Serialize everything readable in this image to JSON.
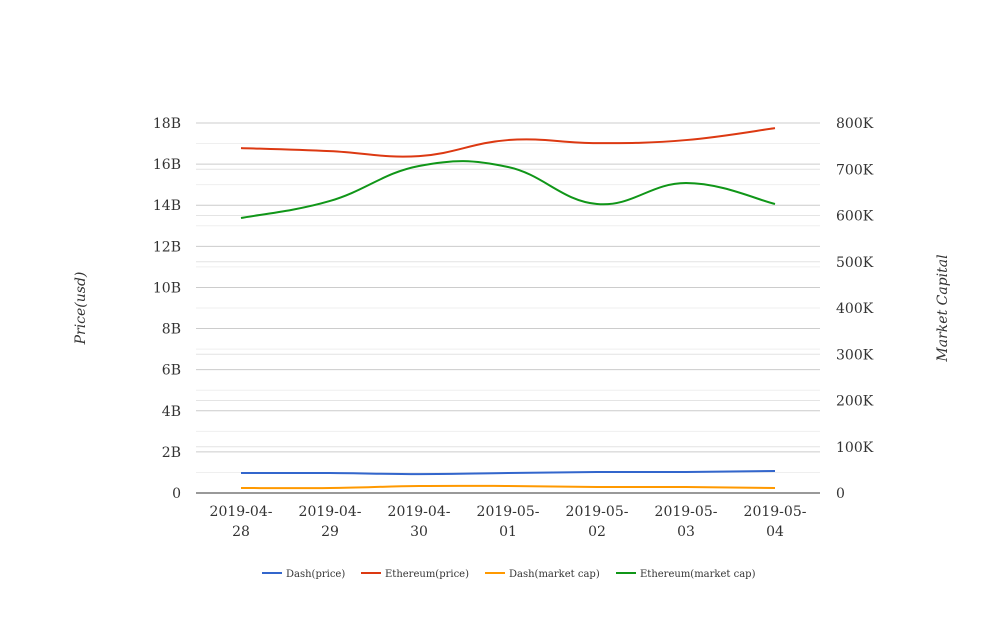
{
  "chart_data": {
    "type": "line",
    "title": "",
    "xlabel": "",
    "ylabel_left": "Price(usd)",
    "ylabel_right": "Market Capital",
    "categories": [
      [
        "2019-04-",
        "28"
      ],
      [
        "2019-04-",
        "29"
      ],
      [
        "2019-04-",
        "30"
      ],
      [
        "2019-05-",
        "01"
      ],
      [
        "2019-05-",
        "02"
      ],
      [
        "2019-05-",
        "03"
      ],
      [
        "2019-05-",
        "04"
      ]
    ],
    "ylim_left": [
      0,
      18
    ],
    "ylim_right": [
      0,
      800
    ],
    "left_ticks": [
      "0",
      "2B",
      "4B",
      "6B",
      "8B",
      "10B",
      "12B",
      "14B",
      "16B",
      "18B"
    ],
    "right_ticks": [
      "0",
      "100K",
      "200K",
      "300K",
      "400K",
      "500K",
      "600K",
      "700K",
      "800K"
    ],
    "grid": true,
    "legend_position": "bottom",
    "series": [
      {
        "name": "Dash(price)",
        "axis": "left",
        "unit": "B",
        "color": "#3366cc",
        "values": [
          0.97,
          0.97,
          0.92,
          0.97,
          1.02,
          1.02,
          1.07
        ]
      },
      {
        "name": "Ethereum(price)",
        "axis": "left",
        "unit": "B",
        "color": "#dc3912",
        "values": [
          16.78,
          16.63,
          16.39,
          17.17,
          17.02,
          17.17,
          17.75
        ]
      },
      {
        "name": "Dash(market cap)",
        "axis": "right",
        "unit": "K",
        "color": "#ff9900",
        "values": [
          10.8,
          10.8,
          15.1,
          15.1,
          13.0,
          13.0,
          10.8
        ]
      },
      {
        "name": "Ethereum(market cap)",
        "axis": "right",
        "unit": "K",
        "color": "#109618",
        "values": [
          594.6,
          631.4,
          707.0,
          704.9,
          624.9,
          670.3,
          624.9
        ]
      }
    ]
  }
}
